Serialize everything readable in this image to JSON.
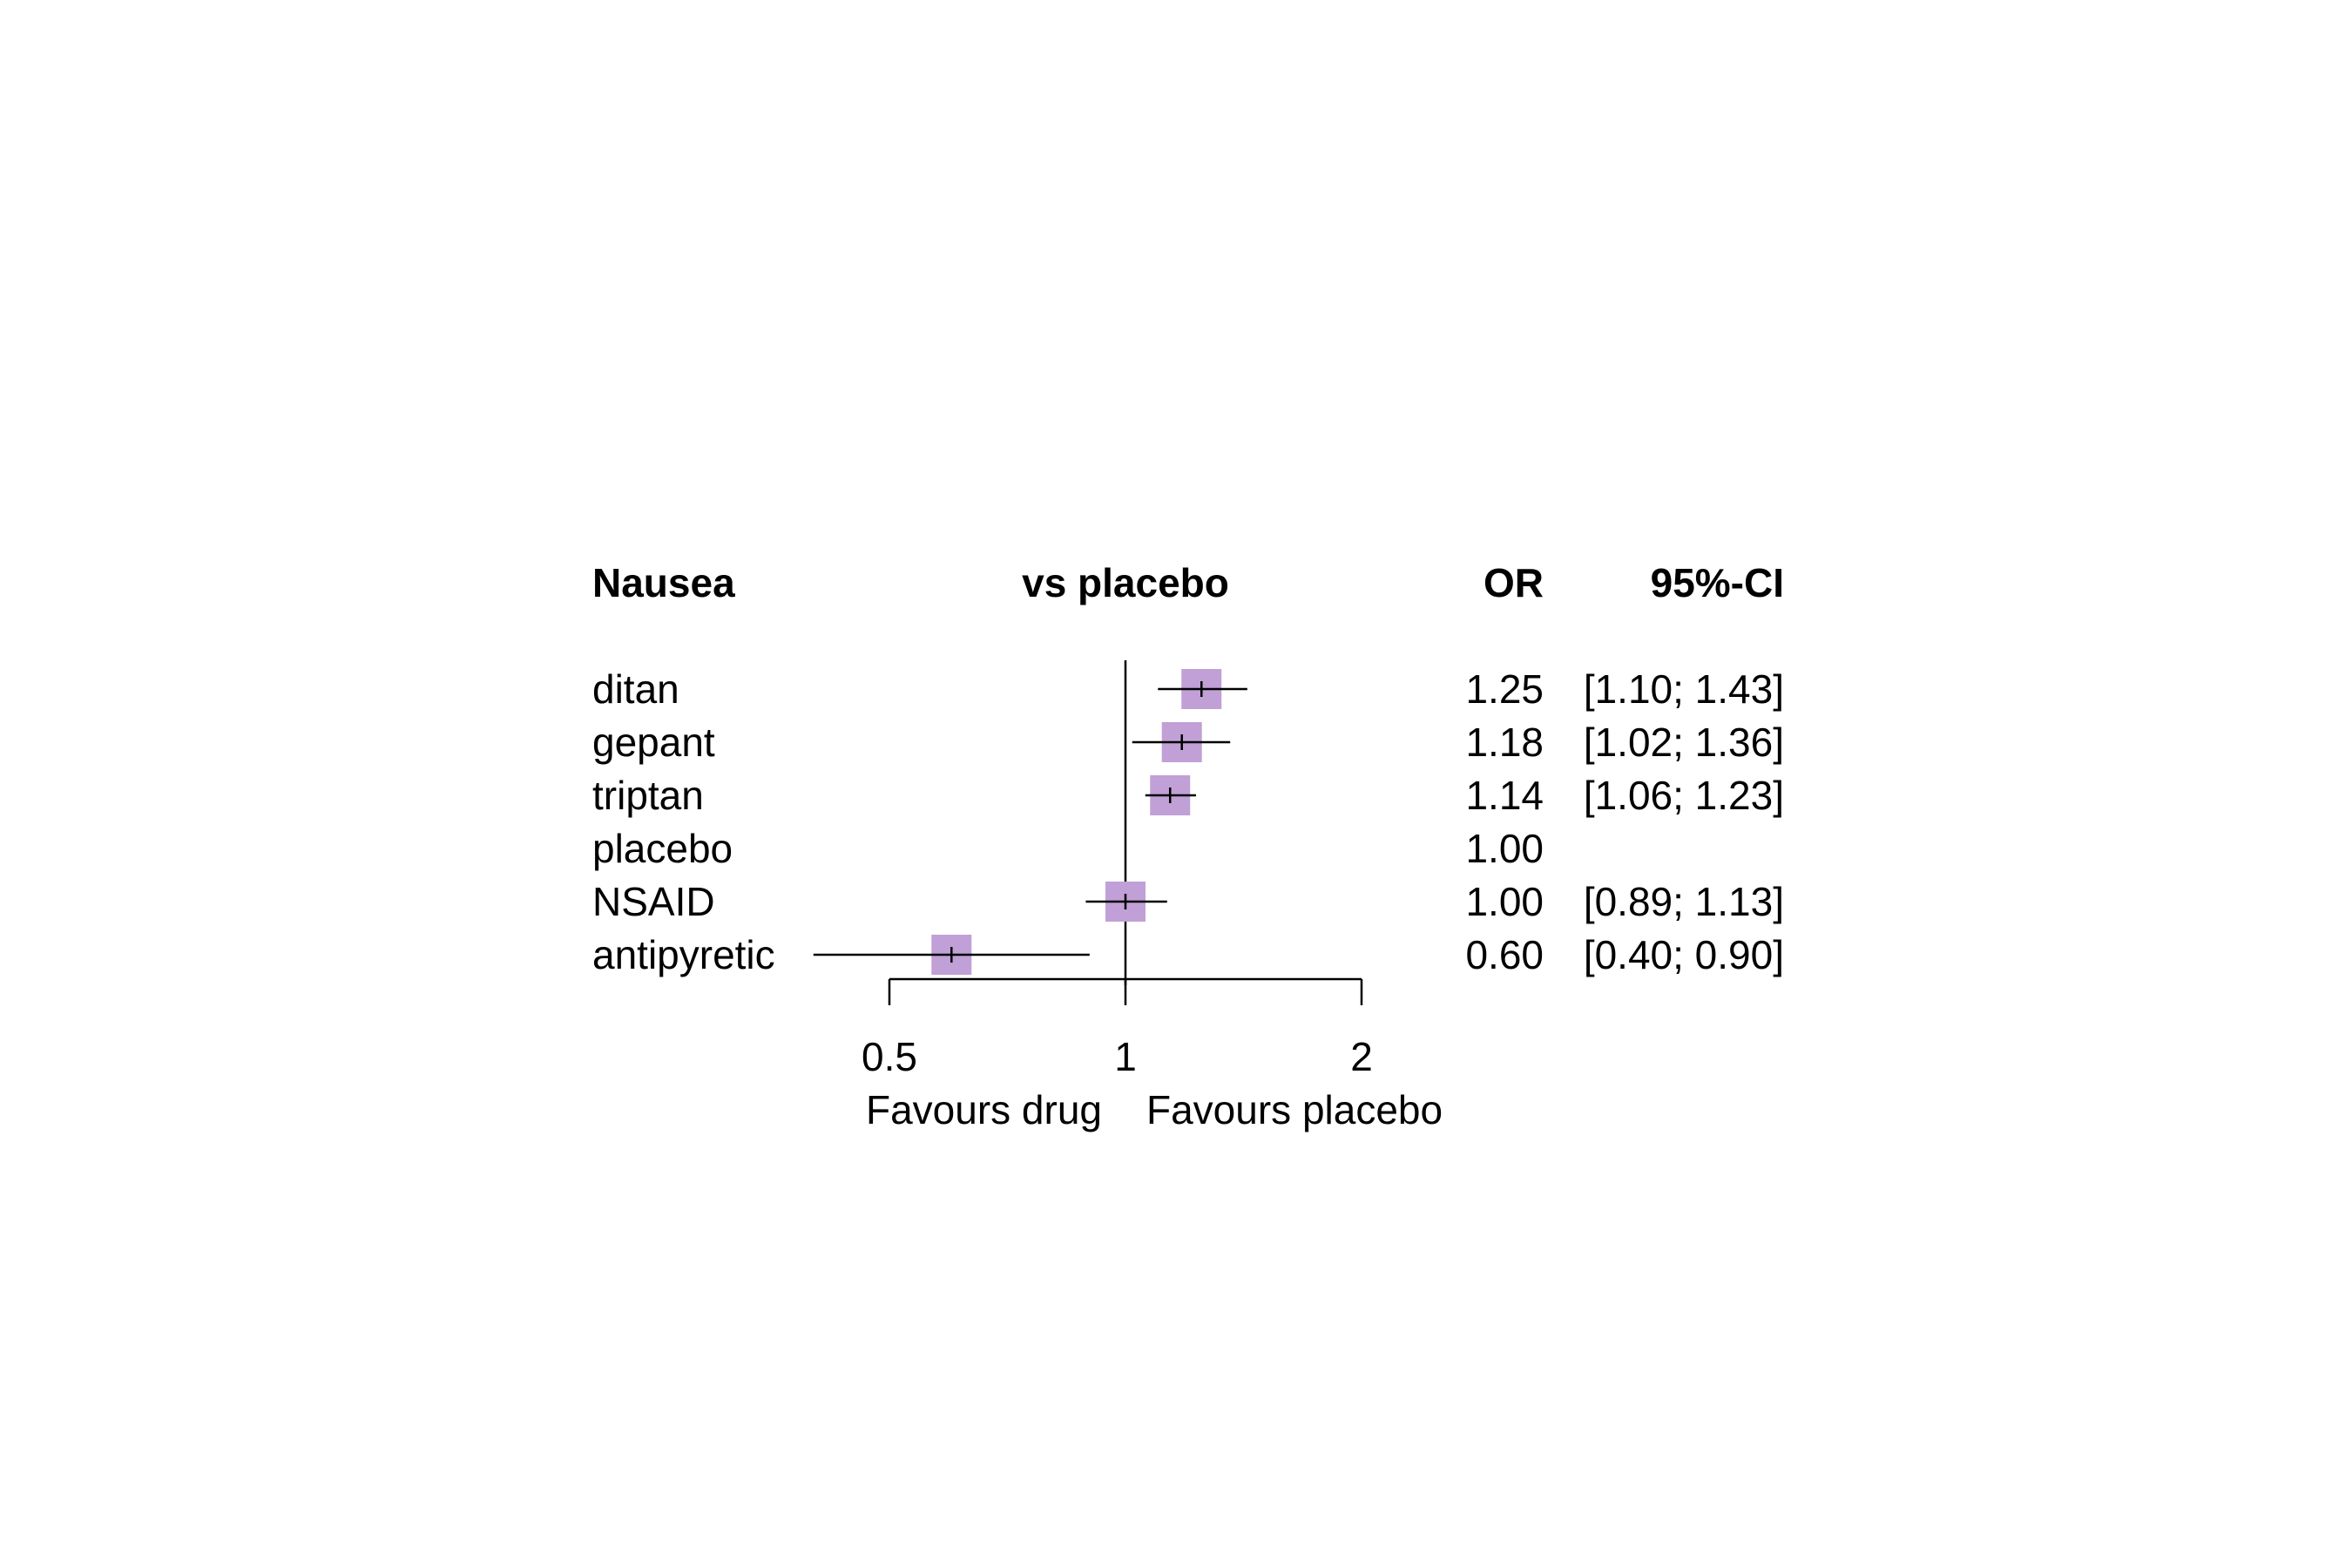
{
  "chart_data": {
    "type": "forest",
    "outcome_label": "Nausea",
    "comparison_label": "vs placebo",
    "estimate_header": "OR",
    "ci_header": "95%-CI",
    "x_scale": "log",
    "xlim": [
      0.5,
      2
    ],
    "reference_value": 1,
    "ticks": [
      {
        "value": 0.5,
        "label": "0.5"
      },
      {
        "value": 1,
        "label": "1"
      },
      {
        "value": 2,
        "label": "2"
      }
    ],
    "favours_left": "Favours drug",
    "favours_right": "Favours placebo",
    "marker_color": "#c0a0d6",
    "rows": [
      {
        "treatment": "ditan",
        "or": 1.25,
        "lower": 1.1,
        "upper": 1.43,
        "or_text": "1.25",
        "ci_text": "[1.10; 1.43]"
      },
      {
        "treatment": "gepant",
        "or": 1.18,
        "lower": 1.02,
        "upper": 1.36,
        "or_text": "1.18",
        "ci_text": "[1.02; 1.36]"
      },
      {
        "treatment": "triptan",
        "or": 1.14,
        "lower": 1.06,
        "upper": 1.23,
        "or_text": "1.14",
        "ci_text": "[1.06; 1.23]"
      },
      {
        "treatment": "placebo",
        "or": 1.0,
        "lower": null,
        "upper": null,
        "or_text": "1.00",
        "ci_text": ""
      },
      {
        "treatment": "NSAID",
        "or": 1.0,
        "lower": 0.89,
        "upper": 1.13,
        "or_text": "1.00",
        "ci_text": "[0.89; 1.13]"
      },
      {
        "treatment": "antipyretic",
        "or": 0.6,
        "lower": 0.4,
        "upper": 0.9,
        "or_text": "0.60",
        "ci_text": "[0.40; 0.90]"
      }
    ]
  }
}
